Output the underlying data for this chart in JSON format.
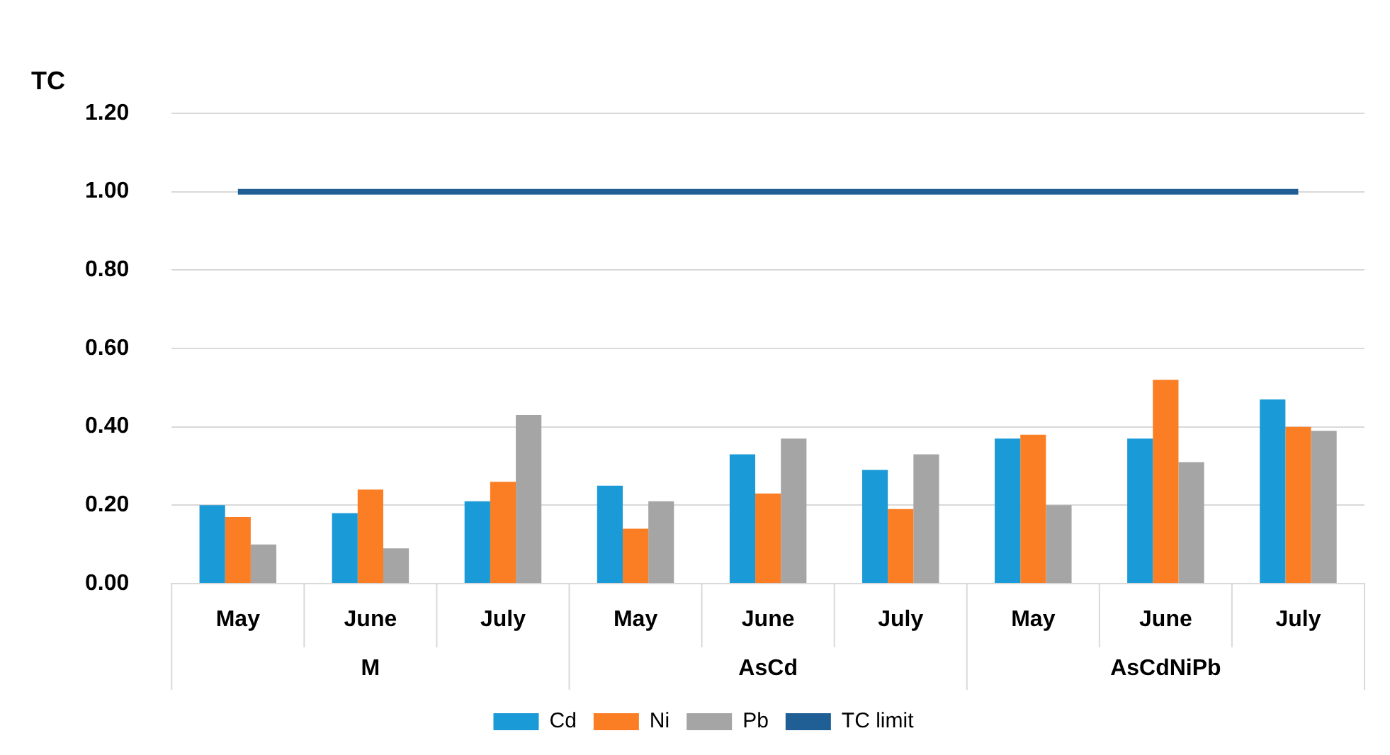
{
  "chart_data": {
    "type": "bar",
    "ylabel": "TC",
    "categories": [
      "May",
      "June",
      "July",
      "May",
      "June",
      "July",
      "May",
      "June",
      "July"
    ],
    "series": [
      {
        "name": "Cd",
        "color": "#1a9ad6",
        "values": [
          0.2,
          0.18,
          0.21,
          0.25,
          0.33,
          0.29,
          0.37,
          0.37,
          0.47
        ]
      },
      {
        "name": "Ni",
        "color": "#fb7d24",
        "values": [
          0.17,
          0.24,
          0.26,
          0.14,
          0.23,
          0.19,
          0.38,
          0.52,
          0.4
        ]
      },
      {
        "name": "Pb",
        "color": "#a5a5a5",
        "values": [
          0.1,
          0.09,
          0.43,
          0.21,
          0.37,
          0.33,
          0.2,
          0.31,
          0.39
        ]
      },
      {
        "name": "TC limit",
        "type": "line",
        "color": "#1f5f96",
        "values": [
          1,
          1,
          1,
          1,
          1,
          1,
          1,
          1,
          1
        ]
      }
    ],
    "annotations": [
      "M",
      "AsCd",
      "AsCdNiPb"
    ],
    "ylim": [
      0,
      1.2
    ],
    "yticks": [
      {
        "value": 0,
        "label": "0.00"
      },
      {
        "value": 0.2,
        "label": "0.20"
      },
      {
        "value": 0.4,
        "label": "0.40"
      },
      {
        "value": 0.6,
        "label": "0.60"
      },
      {
        "value": 0.8,
        "label": "0.80"
      },
      {
        "value": 1,
        "label": "1.00"
      },
      {
        "value": 1.2,
        "label": "1.20"
      }
    ],
    "grid": "y",
    "legend": "bottom",
    "marker": "none"
  }
}
